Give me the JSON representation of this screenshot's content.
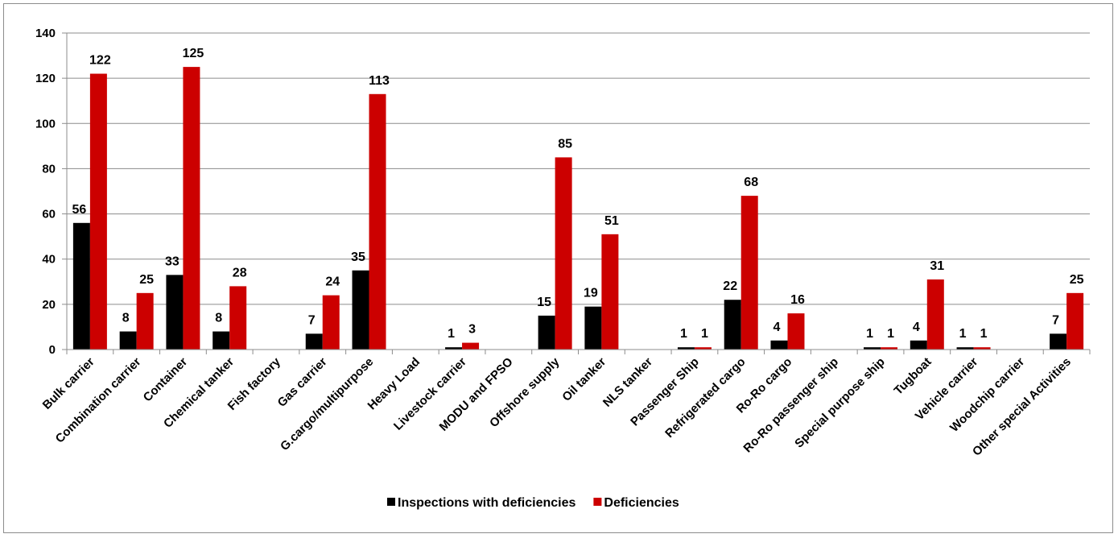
{
  "chart_data": {
    "type": "bar",
    "title": "",
    "xlabel": "",
    "ylabel": "",
    "ylim": [
      0,
      140
    ],
    "yticks": [
      0,
      20,
      40,
      60,
      80,
      100,
      120,
      140
    ],
    "grid": true,
    "legend_position": "bottom",
    "categories": [
      "Bulk carrier",
      "Combination carrier",
      "Container",
      "Chemical tanker",
      "Fish factory",
      "Gas carrier",
      "G.cargo/multipurpose",
      "Heavy Load",
      "Livestock carrier",
      "MODU and FPSO",
      "Offshore supply",
      "Oil tanker",
      "NLS tanker",
      "Passenger Ship",
      "Refrigerated cargo",
      "Ro-Ro cargo",
      "Ro-Ro passenger ship",
      "Special purpose ship",
      "Tugboat",
      "Vehicle carrier",
      "Woodchip carrier",
      "Other special Activities"
    ],
    "series": [
      {
        "name": "Inspections with deficiencies",
        "color": "#000000",
        "values": [
          56,
          8,
          33,
          8,
          null,
          7,
          35,
          null,
          1,
          null,
          15,
          19,
          null,
          1,
          22,
          4,
          null,
          1,
          4,
          1,
          null,
          7
        ]
      },
      {
        "name": "Deficiencies",
        "color": "#cc0000",
        "values": [
          122,
          25,
          125,
          28,
          null,
          24,
          113,
          null,
          3,
          null,
          85,
          51,
          null,
          1,
          68,
          16,
          null,
          1,
          31,
          1,
          null,
          25
        ]
      }
    ]
  }
}
